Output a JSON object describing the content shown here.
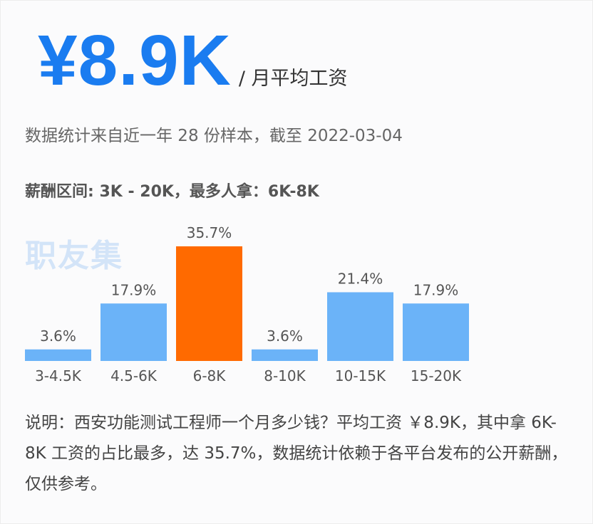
{
  "header": {
    "salary": "¥8.9K",
    "unit": "/ 月平均工资"
  },
  "stats_line": "数据统计来自近一年 28 份样本，截至 2022-03-04",
  "range_line": "薪酬区间: 3K - 20K，最多人拿：6K-8K",
  "watermark": "职友集",
  "colors": {
    "bar": "#6bb3f8",
    "highlight": "#ff6a00",
    "salary": "#1a7cf0"
  },
  "chart_data": {
    "type": "bar",
    "categories": [
      "3-4.5K",
      "4.5-6K",
      "6-8K",
      "8-10K",
      "10-15K",
      "15-20K"
    ],
    "values": [
      3.6,
      17.9,
      35.7,
      3.6,
      21.4,
      17.9
    ],
    "value_labels": [
      "3.6%",
      "17.9%",
      "35.7%",
      "3.6%",
      "21.4%",
      "17.9%"
    ],
    "highlight_index": 2,
    "ylim": [
      0,
      35.7
    ],
    "grid": false
  },
  "note": "说明：西安功能测试工程师一个月多少钱？平均工资 ￥8.9K，其中拿 6K-8K 工资的占比最多，达 35.7%，数据统计依赖于各平台发布的公开薪酬，仅供参考。"
}
